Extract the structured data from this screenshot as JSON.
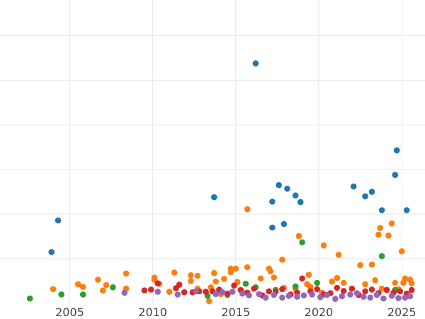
{
  "chart_data": {
    "type": "scatter",
    "title": "",
    "xlabel": "",
    "ylabel": "",
    "xlim": [
      2000.8,
      2026.4
    ],
    "ylim": [
      0,
      6.8
    ],
    "x_ticks": [
      2005,
      2010,
      2015,
      2020,
      2025
    ],
    "y_gridlines": [
      1,
      2,
      3,
      4,
      5,
      6
    ],
    "grid": true,
    "legend": "none",
    "series": [
      {
        "color": "#1f77b4",
        "points": [
          [
            2003.9,
            1.15
          ],
          [
            2004.3,
            1.86
          ],
          [
            2013.7,
            2.38
          ],
          [
            2016.2,
            5.38
          ],
          [
            2017.2,
            2.28
          ],
          [
            2017.2,
            1.7
          ],
          [
            2017.6,
            2.65
          ],
          [
            2017.9,
            1.78
          ],
          [
            2018.1,
            2.57
          ],
          [
            2018.6,
            2.42
          ],
          [
            2018.9,
            2.27
          ],
          [
            2022.1,
            2.62
          ],
          [
            2022.8,
            2.4
          ],
          [
            2023.2,
            2.5
          ],
          [
            2023.8,
            2.09
          ],
          [
            2024.6,
            2.88
          ],
          [
            2024.7,
            3.43
          ],
          [
            2025.3,
            2.09
          ]
        ]
      },
      {
        "color": "#ff7f0e",
        "points": [
          [
            2004.0,
            0.32
          ],
          [
            2005.5,
            0.43
          ],
          [
            2005.8,
            0.37
          ],
          [
            2006.7,
            0.53
          ],
          [
            2007.0,
            0.29
          ],
          [
            2007.2,
            0.41
          ],
          [
            2008.4,
            0.67
          ],
          [
            2008.4,
            0.33
          ],
          [
            2010.1,
            0.58
          ],
          [
            2010.1,
            0.53
          ],
          [
            2010.4,
            0.44
          ],
          [
            2011.0,
            0.26
          ],
          [
            2011.3,
            0.69
          ],
          [
            2012.3,
            0.63
          ],
          [
            2012.3,
            0.5
          ],
          [
            2012.7,
            0.62
          ],
          [
            2012.7,
            0.33
          ],
          [
            2013.4,
            0.05
          ],
          [
            2013.5,
            0.36
          ],
          [
            2013.7,
            0.68
          ],
          [
            2013.8,
            0.49
          ],
          [
            2014.1,
            0.21
          ],
          [
            2014.3,
            0.55
          ],
          [
            2014.7,
            0.78
          ],
          [
            2014.7,
            0.7
          ],
          [
            2015.0,
            0.78
          ],
          [
            2015.1,
            0.48
          ],
          [
            2015.4,
            0.25
          ],
          [
            2015.7,
            0.81
          ],
          [
            2015.7,
            2.11
          ],
          [
            2016.5,
            0.56
          ],
          [
            2017.0,
            0.78
          ],
          [
            2017.1,
            0.72
          ],
          [
            2017.3,
            0.58
          ],
          [
            2017.8,
            0.98
          ],
          [
            2017.9,
            0.35
          ],
          [
            2018.6,
            0.32
          ],
          [
            2018.8,
            1.51
          ],
          [
            2019.3,
            0.43
          ],
          [
            2019.4,
            0.64
          ],
          [
            2019.5,
            0.37
          ],
          [
            2020.2,
            0.24
          ],
          [
            2020.3,
            1.3
          ],
          [
            2020.8,
            0.49
          ],
          [
            2021.1,
            0.57
          ],
          [
            2021.2,
            1.09
          ],
          [
            2021.5,
            0.46
          ],
          [
            2022.5,
            0.86
          ],
          [
            2022.8,
            0.43
          ],
          [
            2023.2,
            0.87
          ],
          [
            2023.4,
            0.52
          ],
          [
            2023.6,
            1.54
          ],
          [
            2023.7,
            1.69
          ],
          [
            2023.8,
            0.33
          ],
          [
            2024.2,
            1.52
          ],
          [
            2024.4,
            1.79
          ],
          [
            2024.6,
            0.46
          ],
          [
            2024.8,
            0.32
          ],
          [
            2025.0,
            1.17
          ],
          [
            2025.1,
            0.46
          ],
          [
            2025.2,
            0.56
          ],
          [
            2025.5,
            0.53
          ],
          [
            2025.6,
            0.45
          ]
        ]
      },
      {
        "color": "#2ca02c",
        "points": [
          [
            2002.6,
            0.11
          ],
          [
            2004.5,
            0.2
          ],
          [
            2005.8,
            0.2
          ],
          [
            2007.6,
            0.36
          ],
          [
            2013.3,
            0.17
          ],
          [
            2014.5,
            0.19
          ],
          [
            2015.6,
            0.44
          ],
          [
            2016.2,
            0.36
          ],
          [
            2017.4,
            0.3
          ],
          [
            2018.6,
            0.38
          ],
          [
            2019.0,
            1.37
          ],
          [
            2019.9,
            0.46
          ],
          [
            2023.8,
            1.06
          ],
          [
            2024.6,
            0.3
          ]
        ]
      },
      {
        "color": "#d62728",
        "points": [
          [
            2009.5,
            0.29
          ],
          [
            2009.9,
            0.31
          ],
          [
            2010.3,
            0.45
          ],
          [
            2011.4,
            0.34
          ],
          [
            2011.6,
            0.42
          ],
          [
            2011.9,
            0.25
          ],
          [
            2012.4,
            0.25
          ],
          [
            2012.8,
            0.27
          ],
          [
            2013.2,
            0.26
          ],
          [
            2013.6,
            0.27
          ],
          [
            2014.0,
            0.31
          ],
          [
            2014.5,
            0.22
          ],
          [
            2014.9,
            0.4
          ],
          [
            2015.3,
            0.3
          ],
          [
            2015.7,
            0.24
          ],
          [
            2016.1,
            0.33
          ],
          [
            2016.6,
            0.18
          ],
          [
            2017.0,
            0.27
          ],
          [
            2017.4,
            0.26
          ],
          [
            2017.8,
            0.32
          ],
          [
            2018.3,
            0.2
          ],
          [
            2018.7,
            0.24
          ],
          [
            2019.0,
            0.56
          ],
          [
            2019.5,
            0.27
          ],
          [
            2019.9,
            0.32
          ],
          [
            2020.3,
            0.2
          ],
          [
            2020.7,
            0.23
          ],
          [
            2021.1,
            0.35
          ],
          [
            2021.5,
            0.28
          ],
          [
            2022.0,
            0.33
          ],
          [
            2022.4,
            0.19
          ],
          [
            2022.8,
            0.27
          ],
          [
            2023.2,
            0.31
          ],
          [
            2023.6,
            0.23
          ],
          [
            2024.1,
            0.3
          ],
          [
            2024.5,
            0.24
          ],
          [
            2024.9,
            0.27
          ],
          [
            2025.3,
            0.22
          ],
          [
            2025.6,
            0.3
          ]
        ]
      },
      {
        "color": "#9467bd",
        "points": [
          [
            2008.3,
            0.24
          ],
          [
            2010.3,
            0.26
          ],
          [
            2011.5,
            0.2
          ],
          [
            2012.6,
            0.27
          ],
          [
            2013.8,
            0.21
          ],
          [
            2014.2,
            0.25
          ],
          [
            2014.8,
            0.26
          ],
          [
            2015.4,
            0.22
          ],
          [
            2015.8,
            0.18
          ],
          [
            2016.4,
            0.21
          ],
          [
            2016.8,
            0.13
          ],
          [
            2017.3,
            0.19
          ],
          [
            2017.8,
            0.13
          ],
          [
            2018.2,
            0.17
          ],
          [
            2018.7,
            0.15
          ],
          [
            2019.1,
            0.18
          ],
          [
            2019.6,
            0.2
          ],
          [
            2020.1,
            0.14
          ],
          [
            2020.5,
            0.19
          ],
          [
            2021.0,
            0.1
          ],
          [
            2021.4,
            0.16
          ],
          [
            2021.9,
            0.2
          ],
          [
            2022.3,
            0.23
          ],
          [
            2022.7,
            0.15
          ],
          [
            2023.1,
            0.13
          ],
          [
            2023.5,
            0.19
          ],
          [
            2023.9,
            0.11
          ],
          [
            2024.4,
            0.17
          ],
          [
            2024.8,
            0.12
          ],
          [
            2025.2,
            0.13
          ],
          [
            2025.5,
            0.16
          ]
        ]
      }
    ]
  }
}
